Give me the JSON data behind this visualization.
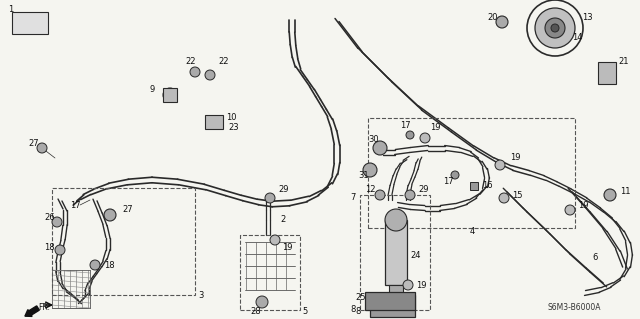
{
  "bg_color": "#f5f5f0",
  "diagram_code": "S6M3-B6000A",
  "fig_width": 6.4,
  "fig_height": 3.19,
  "dpi": 100,
  "lc": "#2a2a2a",
  "lw": 0.8
}
